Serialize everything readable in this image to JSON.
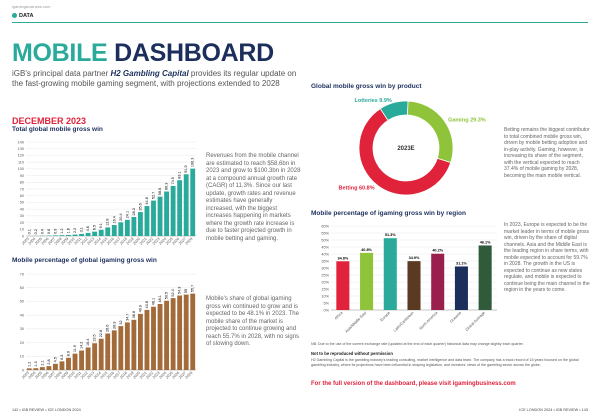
{
  "header": {
    "site": "igamingbusiness.com",
    "section": "DATA"
  },
  "title": {
    "word1": "MOBILE",
    "word2": "DASHBOARD"
  },
  "intro": {
    "pre": "iGB's principal data partner ",
    "partner": "H2 Gambling Capital",
    "post": " provides its regular update on the fast-growing mobile gaming segment, with projections extended to 2028"
  },
  "date_heading": "DECEMBER 2023",
  "chart1_title": "Total global mobile gross win",
  "chart1_text": "Revenues from the mobile channel are estimated to reach $58.6bn in 2023 and grow to $100.3bn in 2028 at a compound annual growth rate (CAGR) of 11.3%. Since our last update, growth rates and revenue estimates have generally increased, with the biggest increases happening in markets where the growth rate increase is due to faster projected growth in mobile betting and gaming.",
  "chart2_title": "Mobile percentage of global igaming gross win",
  "chart2_text": "Mobile's share of global igaming gross win continued to grow and is expected to be 48.1% in 2023. The mobile share of the market is projected to continue growing and reach 55.7% in 2028, with no signs of slowing down.",
  "chart3_title": "Global mobile gross win by product",
  "chart3_text": "Betting remains the biggest contributor to total combined mobile gross win, driven by mobile betting adoption and in-play activity. Gaming, however, is increasing its share of the segment, with the vertical expected to reach 37.4% of mobile gaming by 2028, becoming the main mobile vertical.",
  "chart4_title": "Mobile percentage of igaming gross win by region",
  "chart4_text": "In 2023, Europe is expected to be the market leader in terms of mobile gross win, driven by the share of digital channels. Asia and the Middle East is the leading region in share terms, with mobile expected to account for 59.7% in 2028. The growth in the US is expected to continue as new states regulate, and mobile is expected to continue being the main channel in the region in the years to come.",
  "footnote": "NB: Due to the use of the current exchange rate (updated at the end of each quarter) historical data may change slightly each quarter.",
  "not_reproduced": "Not to be reproduced without permission",
  "about": "H2 Gambling Capital is the gambling industry's leading consulting, market intelligence and data team. The company has a track record of 15 years focused on the global gambling industry, where its projections have been influential in shaping legislation, and investors' views of the gambling sector across the globe.",
  "cta": "For the full version of the dashboard, please visit igamingbusiness.com",
  "page_left": "142 • iGB REVIEW • ICE LONDON 2024",
  "page_right": "ICE LONDON 2024 • iGB REVIEW • 143",
  "colors": {
    "teal": "#2aaa9a",
    "navy": "#1c2f5c",
    "brown": "#a36a3a",
    "red": "#e0223b",
    "lime": "#8fc43a"
  },
  "chart_data": [
    {
      "type": "bar",
      "title": "Total global mobile gross win",
      "categories": [
        "2003",
        "2004",
        "2005",
        "2006",
        "2007",
        "2008",
        "2009",
        "2010",
        "2011",
        "2012",
        "2013",
        "2014",
        "2015",
        "2016",
        "2017",
        "2018",
        "2019",
        "2020",
        "2021",
        "2022",
        "2023",
        "2024",
        "2025",
        "2026",
        "2027",
        "2028"
      ],
      "values": [
        0.1,
        0.2,
        0.4,
        0.6,
        0.9,
        1.2,
        1.6,
        2.2,
        3.1,
        4.6,
        6.5,
        9.1,
        12.8,
        16.4,
        20.4,
        24.1,
        28.3,
        35.6,
        44.6,
        52.7,
        58.6,
        66.3,
        74.5,
        83.1,
        91.9,
        100.3
      ],
      "ylim": [
        0,
        140
      ],
      "yticks": [
        0,
        10,
        20,
        30,
        40,
        50,
        60,
        70,
        80,
        90,
        100,
        110,
        120,
        130,
        140
      ]
    },
    {
      "type": "bar",
      "title": "Mobile percentage of global igaming gross win",
      "categories": [
        "2003",
        "2004",
        "2005",
        "2006",
        "2007",
        "2008",
        "2009",
        "2010",
        "2011",
        "2012",
        "2013",
        "2014",
        "2015",
        "2016",
        "2017",
        "2018",
        "2019",
        "2020",
        "2021",
        "2022",
        "2023",
        "2024",
        "2025",
        "2026",
        "2027",
        "2028"
      ],
      "values": [
        1.2,
        1.3,
        2.1,
        2.8,
        4.5,
        6.3,
        8.9,
        11.9,
        14.2,
        16.4,
        19.5,
        22.8,
        26.6,
        28.9,
        32.0,
        34.7,
        36.6,
        40.9,
        43.8,
        46.1,
        48.1,
        50.5,
        52.4,
        54.3,
        55.0,
        55.7
      ],
      "ylim": [
        0,
        70
      ],
      "yticks": [
        0,
        10,
        20,
        30,
        40,
        50,
        60,
        70
      ]
    },
    {
      "type": "pie",
      "title": "Global mobile gross win by product",
      "center_label": "2023E",
      "slices": [
        {
          "name": "Betting",
          "value": 60.8
        },
        {
          "name": "Lotteries",
          "value": 9.9
        },
        {
          "name": "Gaming",
          "value": 29.3
        }
      ]
    },
    {
      "type": "bar",
      "title": "Mobile percentage of igaming gross win by region",
      "categories": [
        "Africa",
        "Asia/Middle East",
        "Europe",
        "Latin/Caribbean",
        "North America",
        "Oceania",
        "Global Average"
      ],
      "values": [
        34.8,
        40.8,
        51.3,
        34.9,
        40.2,
        31.1,
        46.1
      ],
      "value_labels": [
        "34.8%",
        "40.8%",
        "51.3%",
        "34.9%",
        "40.2%",
        "31.1%",
        "46.1%"
      ],
      "ylim": [
        0,
        60
      ],
      "yticks": [
        "0%",
        "5%",
        "10%",
        "15%",
        "20%",
        "25%",
        "30%",
        "35%",
        "40%",
        "45%",
        "50%",
        "55%",
        "60%"
      ]
    }
  ]
}
